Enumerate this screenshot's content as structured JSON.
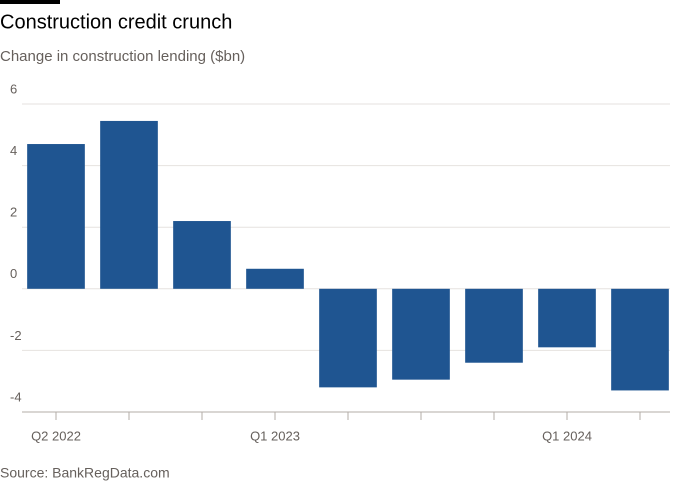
{
  "chart_data": {
    "type": "bar",
    "title": "Construction credit crunch",
    "subtitle": "Change in construction lending ($bn)",
    "source": "Source: BankRegData.com",
    "categories": [
      "Q2 2022",
      null,
      null,
      "Q1 2023",
      null,
      null,
      null,
      "Q1 2024",
      null
    ],
    "values": [
      4.7,
      5.45,
      2.2,
      0.65,
      -3.2,
      -2.95,
      -2.4,
      -1.9,
      -3.3
    ],
    "color": "#1f5591",
    "ylim": [
      -4,
      6
    ],
    "yticks": [
      -4,
      -2,
      0,
      2,
      4,
      6
    ],
    "grid": true
  }
}
